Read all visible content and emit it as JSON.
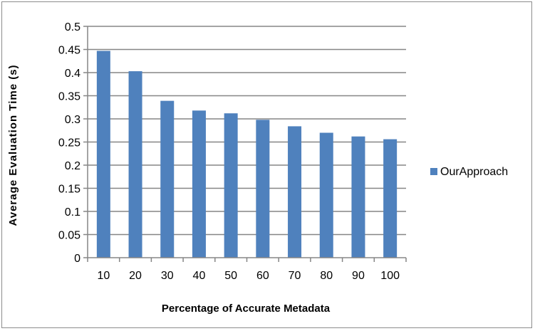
{
  "chart_data": {
    "type": "bar",
    "categories": [
      "10",
      "20",
      "30",
      "40",
      "50",
      "60",
      "70",
      "80",
      "90",
      "100"
    ],
    "series": [
      {
        "name": "OurApproach",
        "color": "#4f81bd",
        "values": [
          0.447,
          0.403,
          0.339,
          0.318,
          0.312,
          0.298,
          0.284,
          0.27,
          0.262,
          0.256
        ]
      }
    ],
    "title": "",
    "xlabel": "Percentage of Accurate Metadata",
    "ylabel": "Average Evaluation Time (s)",
    "ylim": [
      0,
      0.5
    ],
    "yticks": [
      "0",
      "0.05",
      "0.1",
      "0.15",
      "0.2",
      "0.25",
      "0.3",
      "0.35",
      "0.4",
      "0.45",
      "0.5"
    ],
    "grid": true,
    "legend": "right"
  }
}
